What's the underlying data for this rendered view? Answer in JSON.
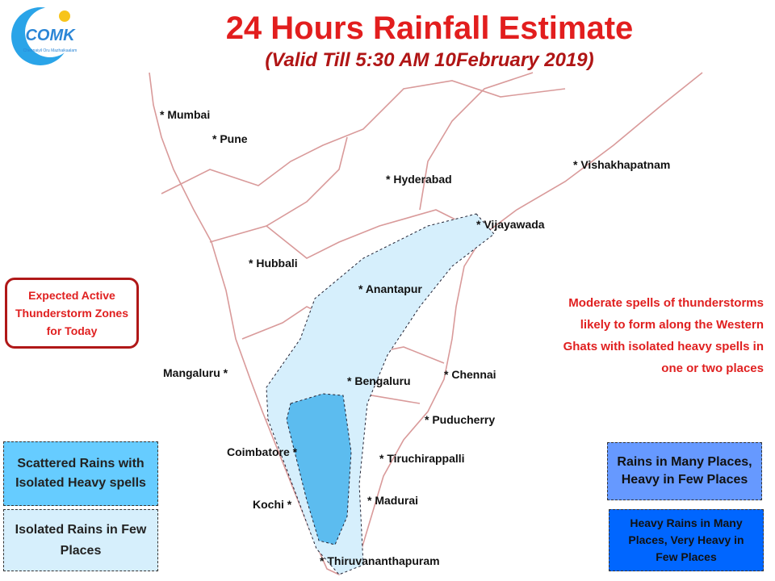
{
  "logo": {
    "mark": "COMK",
    "tagline": "Chennaiyil Oru Mazhaikaalam"
  },
  "header": {
    "title": "24 Hours Rainfall Estimate",
    "subtitle": "(Valid Till 5:30 AM 10February 2019)"
  },
  "cities": [
    "* Mumbai",
    "* Pune",
    "* Hyderabad",
    "* Vishakhapatnam",
    "* Vijayawada",
    "* Hubbali",
    "* Anantapur",
    "Mangaluru *",
    "* Bengaluru",
    "* Chennai",
    "* Puducherry",
    "Coimbatore *",
    "* Tiruchirappalli",
    "Kochi *",
    "* Madurai",
    "* Thiruvananthapuram"
  ],
  "zones_box": "Expected Active Thunderstorm Zones for Today",
  "note": "Moderate spells of thunderstorms  likely to form along the Western Ghats with isolated heavy spells in one or two places",
  "legend": [
    "Scattered Rains with Isolated Heavy spells",
    "Isolated Rains in Few  Places",
    "Rains in Many Places, Heavy in Few Places",
    "Heavy Rains in Many Places, Very Heavy in Few Places"
  ]
}
